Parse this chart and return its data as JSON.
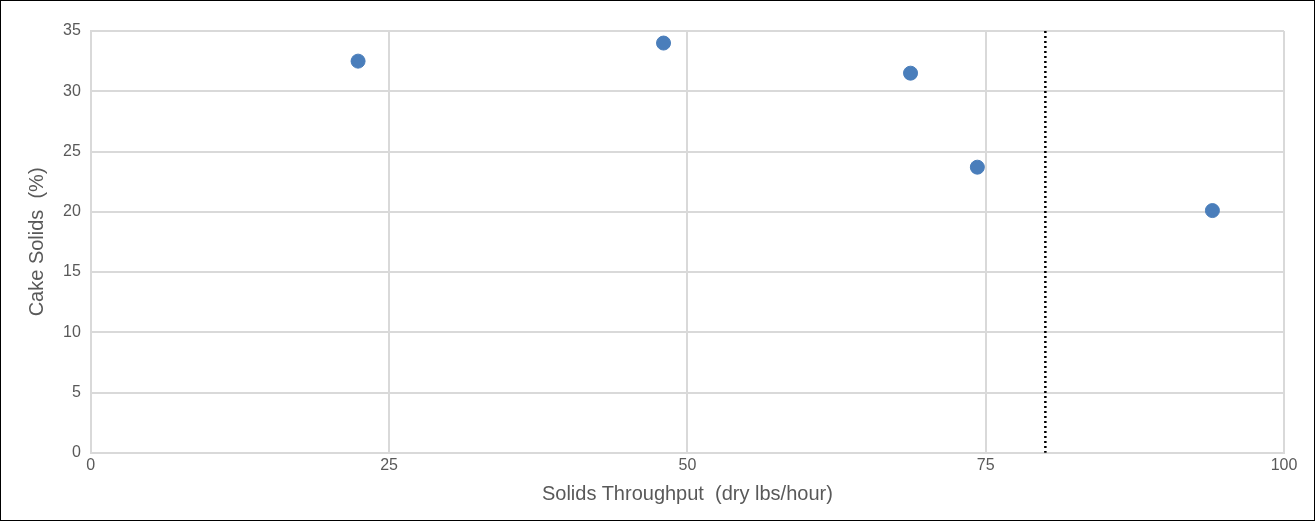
{
  "chart_data": {
    "type": "scatter",
    "xlabel": "Solids Throughput  (dry lbs/hour)",
    "ylabel": "Cake Solids  (%)",
    "series": [
      {
        "color": "#4a7ebb",
        "x": [
          22.4,
          48,
          68.7,
          74.3,
          94
        ],
        "values": [
          32.5,
          34,
          31.5,
          23.7,
          20.1
        ]
      }
    ],
    "xlim": [
      0,
      100
    ],
    "xticks": [
      0,
      25,
      50,
      75,
      100
    ],
    "ylim": [
      0,
      35
    ],
    "yticks": [
      0,
      5,
      10,
      15,
      20,
      25,
      30,
      35
    ],
    "ref_lines": [
      {
        "axis": "x",
        "value": 80,
        "color": "#000000",
        "line_style": "dotted"
      }
    ],
    "grid": true,
    "marker": "circle"
  }
}
